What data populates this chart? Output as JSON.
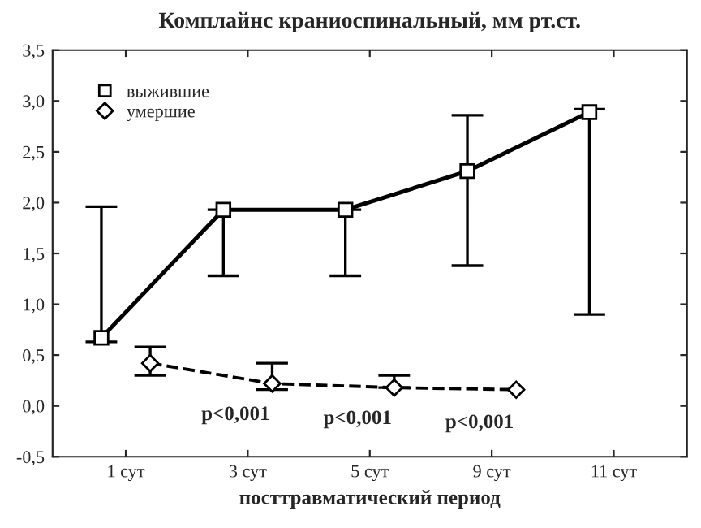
{
  "chart_data": {
    "type": "line",
    "title": "Комплайнс краниоспинальный, мм рт.ст.",
    "xlabel": "посттравматический период",
    "categories": [
      "1 сут",
      "3 сут",
      "5 сут",
      "9 сут",
      "11 сут"
    ],
    "series": [
      {
        "name": "выжившие",
        "color": "#000000",
        "marker": "square",
        "line_style": "solid",
        "values": [
          0.67,
          1.93,
          1.93,
          2.31,
          2.89
        ],
        "errors": [
          [
            0.63,
            1.96
          ],
          [
            1.28,
            1.93
          ],
          [
            1.28,
            1.93
          ],
          [
            1.38,
            2.86
          ],
          [
            0.9,
            2.92
          ]
        ]
      },
      {
        "name": "умершие",
        "color": "#000000",
        "marker": "diamond",
        "line_style": "dashed",
        "values": [
          0.42,
          0.22,
          0.18,
          0.16,
          null
        ],
        "errors": [
          [
            0.3,
            0.58
          ],
          [
            0.16,
            0.42
          ],
          [
            0.18,
            0.3
          ],
          null,
          null
        ]
      }
    ],
    "ylim": [
      -0.5,
      3.5
    ],
    "yticks": [
      {
        "value": -0.5,
        "label": "-0,5"
      },
      {
        "value": 0,
        "label": "0,0"
      },
      {
        "value": 0.5,
        "label": "0,5"
      },
      {
        "value": 1,
        "label": "1,0"
      },
      {
        "value": 1.5,
        "label": "1,5"
      },
      {
        "value": 2,
        "label": "2,0"
      },
      {
        "value": 2.5,
        "label": "2,5"
      },
      {
        "value": 3,
        "label": "3,0"
      },
      {
        "value": 3.5,
        "label": "3,5"
      }
    ],
    "annotations": [
      "p<0,001",
      "p<0,001",
      "p<0,001"
    ],
    "legend": "top left",
    "grid": false
  }
}
